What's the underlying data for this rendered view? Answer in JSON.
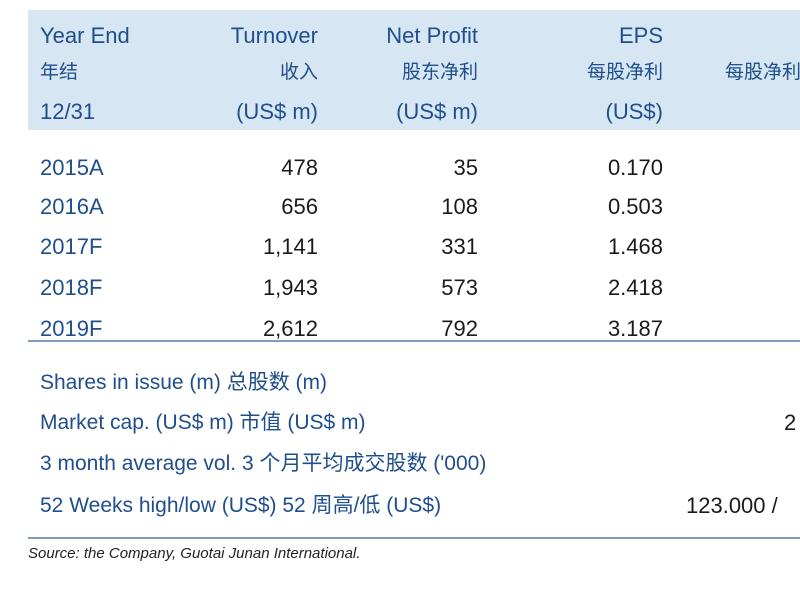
{
  "header": {
    "col0": [
      "Year End",
      "年结",
      "12/31"
    ],
    "col1": [
      "Turnover",
      "收入",
      "(US$ m)"
    ],
    "col2": [
      "Net Profit",
      "股东净利",
      "(US$ m)"
    ],
    "col3": [
      "EPS",
      "每股净利",
      "(US$)"
    ],
    "col4_partial": "每股净利"
  },
  "rows": [
    {
      "year": "2015A",
      "turnover": "478",
      "net_profit": "35",
      "eps": "0.170"
    },
    {
      "year": "2016A",
      "turnover": "656",
      "net_profit": "108",
      "eps": "0.503"
    },
    {
      "year": "2017F",
      "turnover": "1,141",
      "net_profit": "331",
      "eps": "1.468"
    },
    {
      "year": "2018F",
      "turnover": "1,943",
      "net_profit": "573",
      "eps": "2.418"
    },
    {
      "year": "2019F",
      "turnover": "2,612",
      "net_profit": "792",
      "eps": "3.187"
    }
  ],
  "stats": [
    {
      "label": "Shares in issue (m) 总股数 (m)",
      "value": ""
    },
    {
      "label": "Market cap. (US$ m) 市值 (US$ m)",
      "value": "2"
    },
    {
      "label": "3 month average vol. 3 个月平均成交股数 ('000)",
      "value": ""
    },
    {
      "label": "52 Weeks high/low (US$) 52 周高/低 (US$)",
      "value": "123.000 /"
    }
  ],
  "source": "Source: the Company, Guotai Junan International.",
  "colors": {
    "header_band": "#d6e6f3",
    "header_text": "#1f4e8c",
    "rule": "#7f9dbd"
  }
}
